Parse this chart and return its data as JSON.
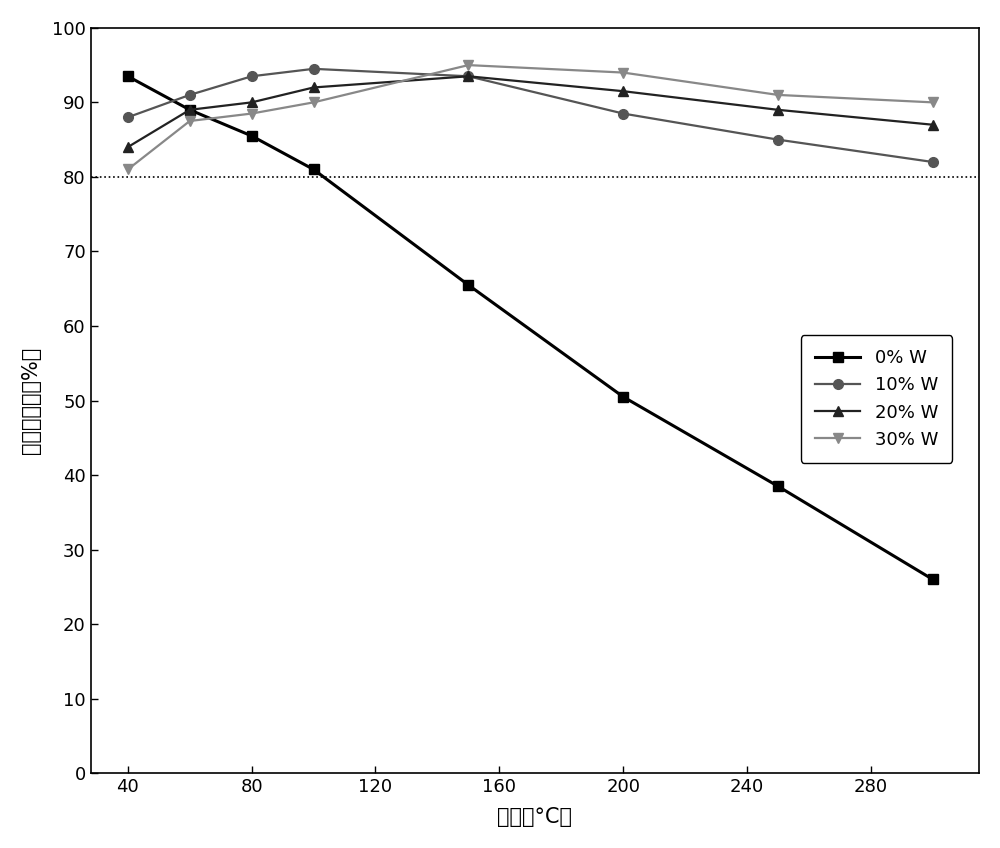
{
  "x": [
    40,
    60,
    80,
    100,
    150,
    200,
    250,
    300
  ],
  "series_order": [
    "0% W",
    "10% W",
    "20% W",
    "30% W"
  ],
  "series": {
    "0% W": {
      "y": [
        93.5,
        89.0,
        85.5,
        81.0,
        65.5,
        50.5,
        38.5,
        26.0
      ],
      "color": "#000000",
      "marker": "s",
      "linestyle": "-",
      "linewidth": 2.2,
      "markersize": 7
    },
    "10% W": {
      "y": [
        88.0,
        91.0,
        93.5,
        94.5,
        93.5,
        88.5,
        85.0,
        82.0
      ],
      "color": "#555555",
      "marker": "o",
      "linestyle": "-",
      "linewidth": 1.6,
      "markersize": 7
    },
    "20% W": {
      "y": [
        84.0,
        89.0,
        90.0,
        92.0,
        93.5,
        91.5,
        89.0,
        87.0
      ],
      "color": "#222222",
      "marker": "^",
      "linestyle": "-",
      "linewidth": 1.6,
      "markersize": 7
    },
    "30% W": {
      "y": [
        81.0,
        87.5,
        88.5,
        90.0,
        95.0,
        94.0,
        91.0,
        90.0
      ],
      "color": "#888888",
      "marker": "v",
      "linestyle": "-",
      "linewidth": 1.6,
      "markersize": 7
    }
  },
  "xlabel": "温度（°C）",
  "ylabel": "氮气选择性（%）",
  "xlim": [
    28,
    315
  ],
  "ylim": [
    0,
    100
  ],
  "xticks": [
    40,
    80,
    120,
    160,
    200,
    240,
    280
  ],
  "yticks": [
    0,
    10,
    20,
    30,
    40,
    50,
    60,
    70,
    80,
    90,
    100
  ],
  "dotted_line_y": 80,
  "background_color": "#ffffff",
  "grid": false
}
